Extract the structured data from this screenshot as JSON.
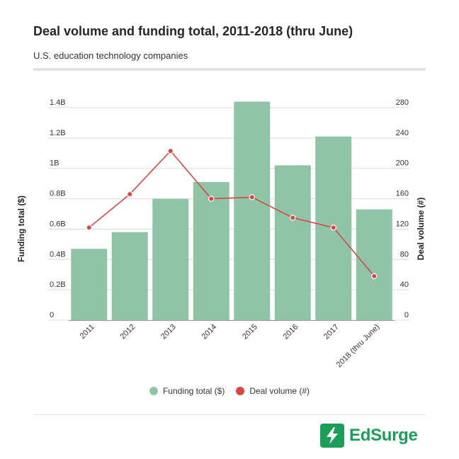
{
  "header": {
    "title": "Deal volume and funding total, 2011-2018 (thru June)",
    "subtitle": "U.S. education technology companies"
  },
  "legend": {
    "funding_label": "Funding total ($)",
    "deal_label": "Deal volume (#)"
  },
  "brand": {
    "name": "EdSurge",
    "color": "#1b9e59",
    "icon": "edsurge-bolt-logo"
  },
  "colors": {
    "bar": "#8fc5a6",
    "line": "#d94545",
    "grid": "#dcdcdc"
  },
  "chart_data": {
    "type": "bar",
    "categories": [
      "2011",
      "2012",
      "2013",
      "2014",
      "2015",
      "2016",
      "2017",
      "2018 (thru June)"
    ],
    "series": [
      {
        "name": "Funding total ($)",
        "type": "bar",
        "axis": "left",
        "values": [
          0.47,
          0.58,
          0.8,
          0.91,
          1.44,
          1.02,
          1.21,
          0.73
        ]
      },
      {
        "name": "Deal volume (#)",
        "type": "line",
        "axis": "right",
        "values": [
          122,
          166,
          223,
          160,
          162,
          135,
          122,
          58
        ]
      }
    ],
    "ylabel": "Funding total ($)",
    "y2label": "Deal volume (#)",
    "ylim": [
      0,
      1.4
    ],
    "y2lim": [
      0,
      280
    ],
    "yticks": [
      "0",
      "0.2B",
      "0.4B",
      "0.6B",
      "0.8B",
      "1B",
      "1.2B",
      "1.4B"
    ],
    "y2ticks": [
      "0",
      "40",
      "80",
      "120",
      "160",
      "200",
      "240",
      "280"
    ],
    "grid": true,
    "legend_position": "bottom"
  }
}
